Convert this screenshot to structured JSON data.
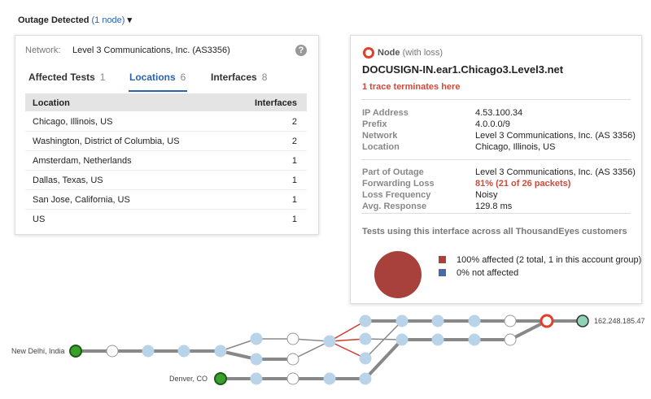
{
  "header": {
    "title": "Outage Detected",
    "link": "(1 node)"
  },
  "left_panel": {
    "network_label": "Network:",
    "network": "Level 3 Communications, Inc. (AS3356)",
    "tabs": [
      {
        "label": "Affected Tests",
        "count": 1
      },
      {
        "label": "Locations",
        "count": 6
      },
      {
        "label": "Interfaces",
        "count": 8
      }
    ],
    "table": {
      "columns": [
        "Location",
        "Interfaces"
      ],
      "rows": [
        [
          "Chicago, Illinois, US",
          2
        ],
        [
          "Washington, District of Columbia, US",
          2
        ],
        [
          "Amsterdam, Netherlands",
          1
        ],
        [
          "Dallas, Texas, US",
          1
        ],
        [
          "San Jose, California, US",
          1
        ],
        [
          "US",
          1
        ]
      ]
    }
  },
  "right_panel": {
    "node_type": "Node",
    "node_note": "(with loss)",
    "hostname": "DOCUSIGN-IN.ear1.Chicago3.Level3.net",
    "trace_note": "1 trace terminates here",
    "details": [
      {
        "label": "IP Address",
        "value": "4.53.100.34"
      },
      {
        "label": "Prefix",
        "value": "4.0.0.0/9"
      },
      {
        "label": "Network",
        "value": "Level 3 Communications, Inc. (AS 3356)"
      },
      {
        "label": "Location",
        "value": "Chicago, Illinois, US"
      }
    ],
    "outage": [
      {
        "label": "Part of Outage",
        "value": "Level 3 Communications, Inc. (AS 3356)"
      },
      {
        "label": "Forwarding Loss",
        "value": "81% (21 of 26 packets)"
      },
      {
        "label": "Loss Frequency",
        "value": "Noisy"
      },
      {
        "label": "Avg. Response",
        "value": "129.8 ms"
      }
    ],
    "tests_title": "Tests using this interface across all ThousandEyes customers",
    "legend": [
      {
        "label": "100% affected (2 total, 1 in this account group)",
        "color": "#a8403c"
      },
      {
        "label": "0% not affected",
        "color": "#4a6aa5"
      }
    ]
  },
  "path": {
    "source1": "New Delhi, India",
    "source2": "Denver, CO",
    "target": "162.248.185.47"
  }
}
